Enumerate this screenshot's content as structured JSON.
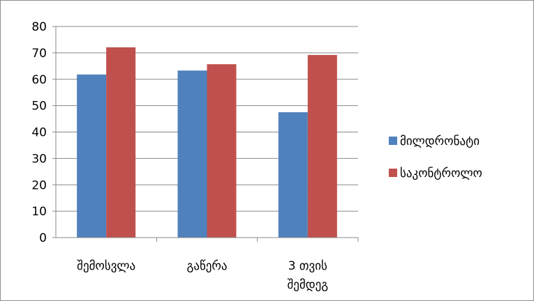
{
  "chart_data": {
    "type": "bar",
    "title": "",
    "xlabel": "",
    "ylabel": "",
    "categories": [
      [
        "შემოსვლა"
      ],
      [
        "გაწერა"
      ],
      [
        "3 თვის",
        "შემდეგ"
      ]
    ],
    "series": [
      {
        "name": "მილდრონატი",
        "color": "#4f81bd",
        "values": [
          61.8,
          63.3,
          47.5
        ]
      },
      {
        "name": "საკონტროლო",
        "color": "#c0504d",
        "values": [
          72.1,
          65.7,
          69.2
        ]
      }
    ],
    "ylim": [
      0,
      80
    ],
    "yticks": [
      0,
      10,
      20,
      30,
      40,
      50,
      60,
      70,
      80
    ],
    "grid": true,
    "legend_position": "right"
  }
}
